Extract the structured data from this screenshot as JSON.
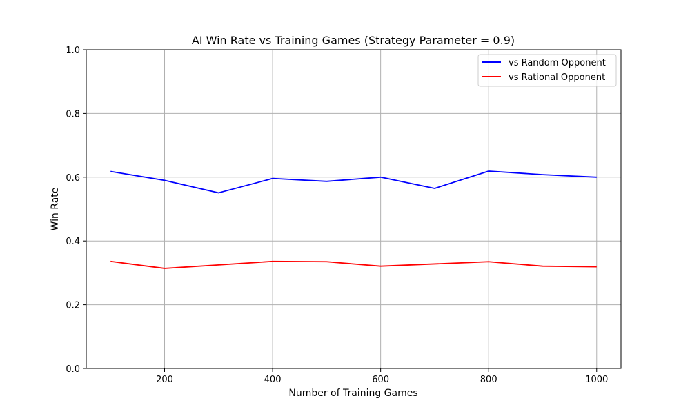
{
  "chart_data": {
    "type": "line",
    "title": "AI Win Rate vs Training Games (Strategy Parameter = 0.9)",
    "xlabel": "Number of Training Games",
    "ylabel": "Win Rate",
    "x": [
      100,
      200,
      300,
      400,
      500,
      600,
      700,
      800,
      900,
      1000
    ],
    "xlim": [
      55,
      1045
    ],
    "ylim": [
      0,
      1
    ],
    "x_ticks": [
      200,
      400,
      600,
      800,
      1000
    ],
    "y_ticks": [
      0.0,
      0.2,
      0.4,
      0.6,
      0.8,
      1.0
    ],
    "x_tick_labels": [
      "200",
      "400",
      "600",
      "800",
      "1000"
    ],
    "y_tick_labels": [
      "0.0",
      "0.2",
      "0.4",
      "0.6",
      "0.8",
      "1.0"
    ],
    "grid": true,
    "legend_position": "top-right",
    "series": [
      {
        "name": "vs Random Opponent",
        "color": "#0000ff",
        "values": [
          0.618,
          0.59,
          0.551,
          0.596,
          0.587,
          0.6,
          0.565,
          0.619,
          0.608,
          0.6
        ]
      },
      {
        "name": "vs Rational Opponent",
        "color": "#ff0000",
        "values": [
          0.336,
          0.314,
          0.325,
          0.336,
          0.335,
          0.321,
          0.328,
          0.335,
          0.321,
          0.319
        ]
      }
    ]
  }
}
